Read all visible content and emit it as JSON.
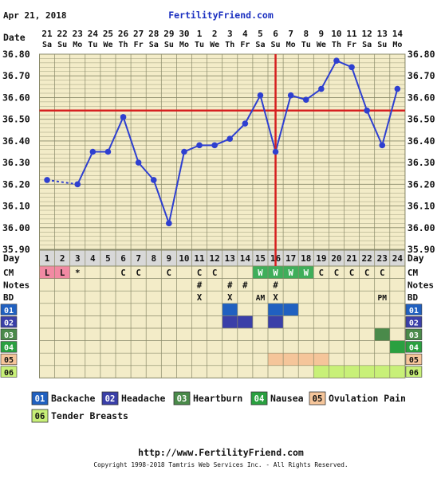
{
  "header": {
    "date": "Apr 21, 2018",
    "brand": "FertilityFriend.com"
  },
  "colors": {
    "grid_bg": "#f3ecc8",
    "grid_line": "#8a8a6a",
    "series": "#2e3fd0",
    "coverline": "#d62020",
    "period": "#f28aa3",
    "cm_watery": "#3fae5a",
    "sym1": "#2060c0",
    "sym2": "#3a3fa8",
    "sym3": "#4a8a4a",
    "sym4": "#2aa040",
    "sym5": "#f5c59a",
    "sym6": "#c8f078"
  },
  "row_labels": {
    "date": "Date",
    "day": "Day",
    "cm": "CM",
    "notes": "Notes",
    "bd": "BD"
  },
  "chart_data": {
    "type": "line",
    "dates": [
      "21",
      "22",
      "23",
      "24",
      "25",
      "26",
      "27",
      "28",
      "29",
      "30",
      "1",
      "2",
      "3",
      "4",
      "5",
      "6",
      "7",
      "8",
      "9",
      "10",
      "11",
      "12",
      "13",
      "14"
    ],
    "weekdays": [
      "Sa",
      "Su",
      "Mo",
      "Tu",
      "We",
      "Th",
      "Fr",
      "Sa",
      "Su",
      "Mo",
      "Tu",
      "We",
      "Th",
      "Fr",
      "Sa",
      "Su",
      "Mo",
      "Tu",
      "We",
      "Th",
      "Fr",
      "Sa",
      "Su",
      "Mo"
    ],
    "cycle_days": [
      "1",
      "2",
      "3",
      "4",
      "5",
      "6",
      "7",
      "8",
      "9",
      "10",
      "11",
      "12",
      "13",
      "14",
      "15",
      "16",
      "17",
      "18",
      "19",
      "20",
      "21",
      "22",
      "23",
      "24"
    ],
    "y_ticks": [
      "36.80",
      "36.70",
      "36.60",
      "36.50",
      "36.40",
      "36.30",
      "36.20",
      "36.10",
      "36.00",
      "35.90"
    ],
    "ylim": [
      35.9,
      36.8
    ],
    "temps": [
      36.22,
      null,
      36.2,
      36.35,
      36.35,
      36.51,
      36.3,
      36.22,
      36.02,
      36.35,
      36.38,
      36.38,
      36.41,
      36.48,
      36.61,
      36.35,
      36.61,
      36.59,
      36.64,
      36.77,
      36.74,
      36.54,
      36.38,
      36.64
    ],
    "coverline": 36.54,
    "ovulation_day": 16,
    "cm": [
      "L",
      "L",
      "*",
      "",
      "",
      "C",
      "C",
      "",
      "C",
      "",
      "C",
      "C",
      "",
      "",
      "W",
      "W",
      "W",
      "W",
      "C",
      "C",
      "C",
      "C",
      "C",
      ""
    ],
    "notes": [
      "",
      "",
      "",
      "",
      "",
      "",
      "",
      "",
      "",
      "",
      "#",
      "",
      "#",
      "#",
      "",
      "#",
      "",
      "",
      "",
      "",
      "",
      "",
      "",
      ""
    ],
    "bd": [
      "",
      "",
      "",
      "",
      "",
      "",
      "",
      "",
      "",
      "",
      "X",
      "",
      "X",
      "",
      "AM",
      "X",
      "",
      "",
      "",
      "",
      "",
      "",
      "PM",
      ""
    ],
    "symptoms": [
      {
        "id": "01",
        "name": "Backache",
        "days": [
          13,
          16,
          17
        ]
      },
      {
        "id": "02",
        "name": "Headache",
        "days": [
          13,
          14,
          16
        ]
      },
      {
        "id": "03",
        "name": "Heartburn",
        "days": [
          23
        ]
      },
      {
        "id": "04",
        "name": "Nausea",
        "days": [
          24
        ]
      },
      {
        "id": "05",
        "name": "Ovulation Pain",
        "days": [
          16,
          17,
          18,
          19
        ]
      },
      {
        "id": "06",
        "name": "Tender Breasts",
        "days": [
          19,
          20,
          21,
          22,
          23,
          24
        ]
      }
    ]
  },
  "footer": {
    "url": "http://www.FertilityFriend.com",
    "copyright": "Copyright 1998-2018 Tamtris Web Services Inc. - All Rights Reserved."
  }
}
